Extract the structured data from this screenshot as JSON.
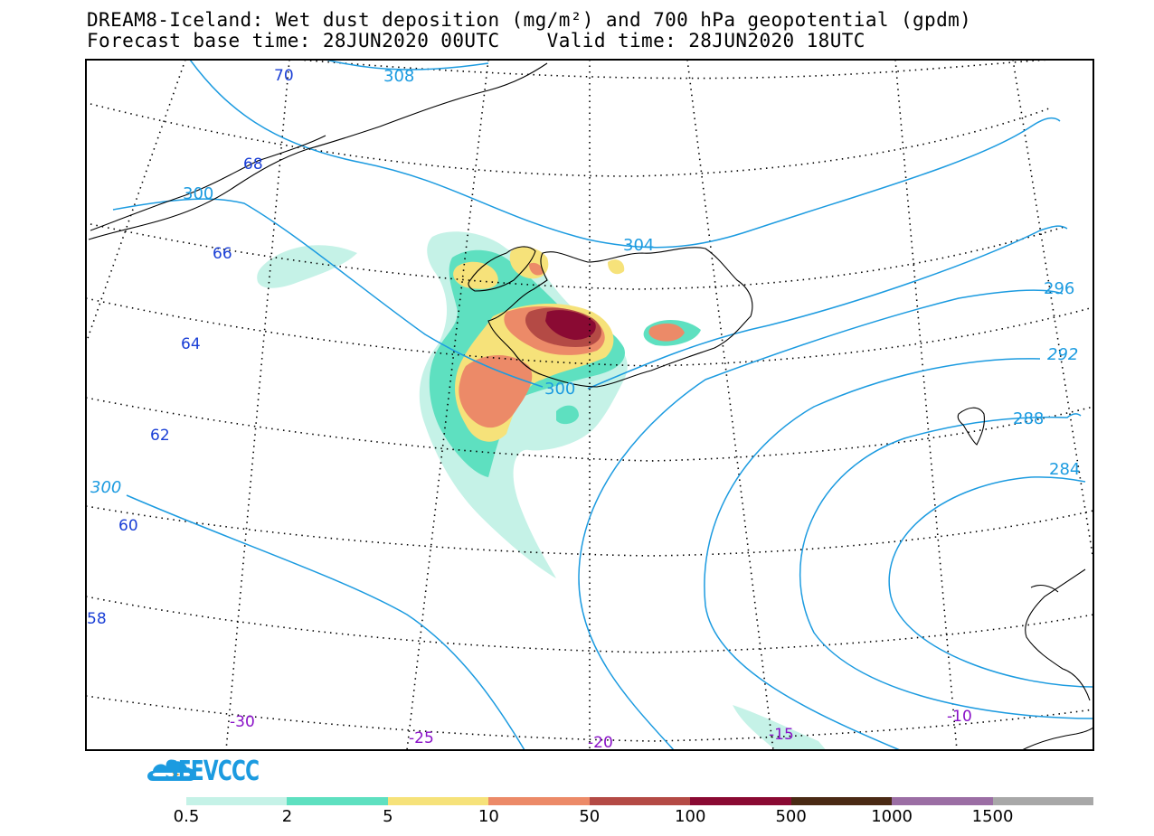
{
  "title": {
    "line1": "DREAM8-Iceland: Wet dust deposition (mg/m²) and 700 hPa geopotential (gpdm)",
    "line2": "Forecast base time: 28JUN2020 00UTC    Valid time: 28JUN2020 18UTC"
  },
  "map": {
    "latitude_labels": [
      "70",
      "68",
      "66",
      "64",
      "62",
      "60",
      "58"
    ],
    "longitude_labels": [
      "-30",
      "-25",
      "-20",
      "-15",
      "-10"
    ],
    "contour_labels": [
      "308",
      "304",
      "300",
      "300",
      "300",
      "296",
      "292",
      "288",
      "284"
    ],
    "colors": {
      "contour": "#1c9be0",
      "lat_label": "#1a3fd6",
      "lon_label": "#8a12c8",
      "coast": "#000000"
    }
  },
  "legend": {
    "labels": [
      "0.5",
      "2",
      "5",
      "10",
      "50",
      "100",
      "500",
      "1000",
      "1500"
    ],
    "colors": [
      "#c5f2e7",
      "#5ee0c0",
      "#f6e27a",
      "#ec8a68",
      "#b44a45",
      "#8a0a33",
      "#4a2a14",
      "#9b6ea4",
      "#a8a8a8"
    ]
  },
  "logo": {
    "text": "SEEVCCC",
    "icon": "cloud-arrow-icon"
  }
}
